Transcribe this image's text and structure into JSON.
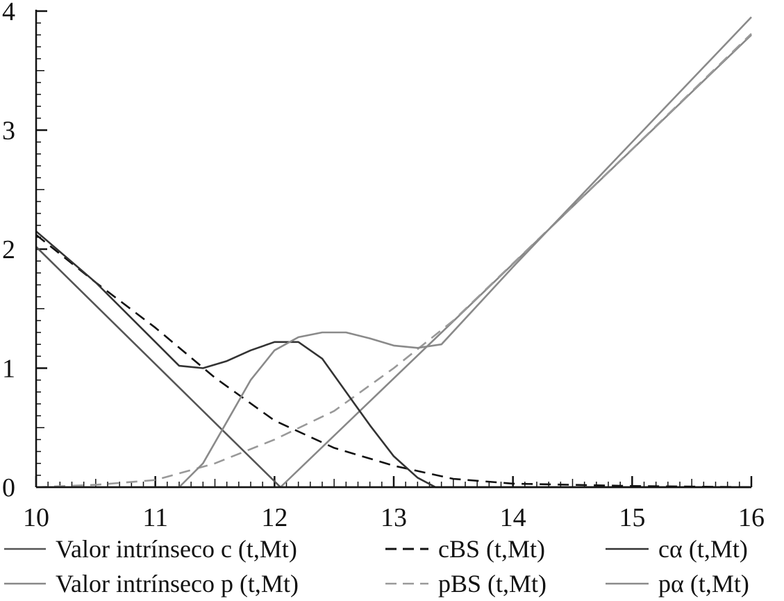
{
  "chart_data": {
    "type": "line",
    "title": "",
    "xlabel": "",
    "ylabel": "",
    "xlim": [
      10,
      16
    ],
    "ylim": [
      0,
      4
    ],
    "x_ticks": [
      "10",
      "11",
      "12",
      "13",
      "14",
      "15",
      "16"
    ],
    "y_ticks": [
      "0",
      "1",
      "2",
      "3",
      "4"
    ],
    "grid": false,
    "legend_position": "bottom",
    "series": [
      {
        "name": "Valor intrínseco c (t, M_t)",
        "legend_label": "Valor intrínseco c (t,Mt)",
        "color": "#555555",
        "style": "solid",
        "points": [
          [
            10,
            2.02
          ],
          [
            12.05,
            0
          ],
          [
            16,
            0
          ]
        ]
      },
      {
        "name": "Valor intrínseco p (t, M_t)",
        "legend_label": "Valor intrínseco p (t,Mt)",
        "color": "#888888",
        "style": "solid",
        "points": [
          [
            10,
            0
          ],
          [
            12.05,
            0
          ],
          [
            16,
            3.8
          ]
        ]
      },
      {
        "name": "c_BS (t, M_t)",
        "legend_label": "cBS (t,Mt)",
        "color": "#111111",
        "style": "dashed",
        "points": [
          [
            10,
            2.12
          ],
          [
            10.5,
            1.72
          ],
          [
            11,
            1.34
          ],
          [
            11.5,
            0.92
          ],
          [
            12,
            0.56
          ],
          [
            12.5,
            0.33
          ],
          [
            13,
            0.18
          ],
          [
            13.5,
            0.07
          ],
          [
            14,
            0.03
          ],
          [
            15,
            0.01
          ],
          [
            16,
            0
          ]
        ]
      },
      {
        "name": "p_BS (t, M_t)",
        "legend_label": "pBS (t,Mt)",
        "color": "#999999",
        "style": "dashed",
        "points": [
          [
            10,
            0
          ],
          [
            10.5,
            0.02
          ],
          [
            11,
            0.06
          ],
          [
            11.5,
            0.2
          ],
          [
            12,
            0.4
          ],
          [
            12.5,
            0.64
          ],
          [
            13,
            1.0
          ],
          [
            13.5,
            1.4
          ],
          [
            14,
            1.88
          ],
          [
            15,
            2.84
          ],
          [
            16,
            3.81
          ]
        ]
      },
      {
        "name": "c_α (t, M_t)",
        "legend_label": "cα (t,Mt)",
        "color": "#333333",
        "style": "solid",
        "points": [
          [
            10,
            2.15
          ],
          [
            10.5,
            1.72
          ],
          [
            11,
            1.22
          ],
          [
            11.2,
            1.02
          ],
          [
            11.4,
            1.0
          ],
          [
            11.6,
            1.06
          ],
          [
            11.8,
            1.15
          ],
          [
            12,
            1.22
          ],
          [
            12.2,
            1.22
          ],
          [
            12.4,
            1.08
          ],
          [
            12.6,
            0.8
          ],
          [
            12.8,
            0.52
          ],
          [
            13,
            0.26
          ],
          [
            13.2,
            0.08
          ],
          [
            13.35,
            0
          ],
          [
            16,
            0
          ]
        ]
      },
      {
        "name": "p_α (t, M_t)",
        "legend_label": "pα (t,Mt)",
        "color": "#8a8a8a",
        "style": "solid",
        "points": [
          [
            10,
            0
          ],
          [
            11.2,
            0
          ],
          [
            11.4,
            0.2
          ],
          [
            11.6,
            0.55
          ],
          [
            11.8,
            0.9
          ],
          [
            12,
            1.15
          ],
          [
            12.2,
            1.26
          ],
          [
            12.4,
            1.3
          ],
          [
            12.6,
            1.3
          ],
          [
            12.8,
            1.25
          ],
          [
            13,
            1.19
          ],
          [
            13.2,
            1.17
          ],
          [
            13.4,
            1.2
          ],
          [
            14,
            1.85
          ],
          [
            16,
            3.95
          ]
        ]
      }
    ]
  }
}
